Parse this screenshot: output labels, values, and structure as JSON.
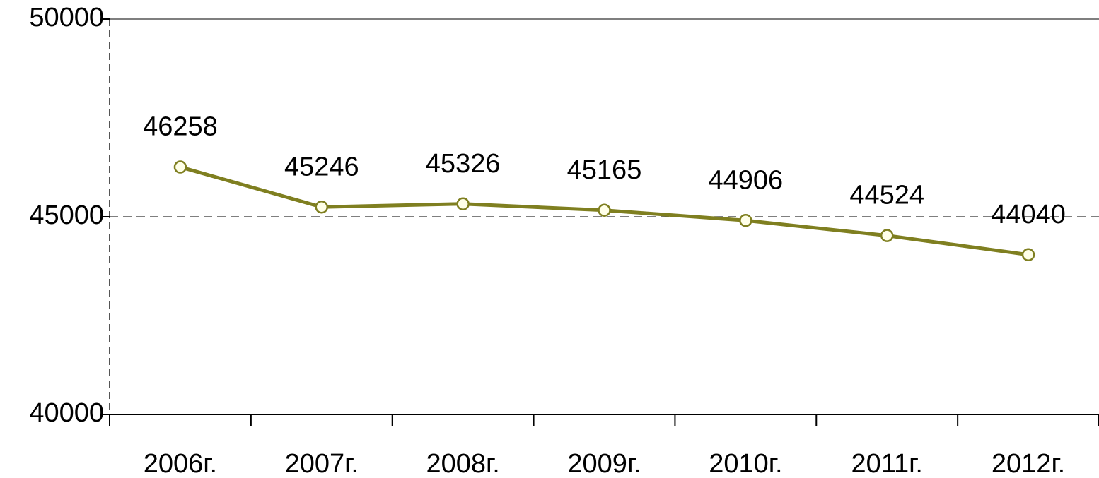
{
  "chart_data": {
    "type": "line",
    "categories": [
      "2006г.",
      "2007г.",
      "2008г.",
      "2009г.",
      "2010г.",
      "2011г.",
      "2012г."
    ],
    "series": [
      {
        "name": null,
        "color": "#7f7f20",
        "values": [
          46258,
          45246,
          45326,
          45165,
          44906,
          44524,
          44040
        ]
      }
    ],
    "ylim": [
      40000,
      50000
    ],
    "yticks": [
      40000,
      45000,
      50000
    ],
    "grid": true,
    "data_labels": true
  }
}
